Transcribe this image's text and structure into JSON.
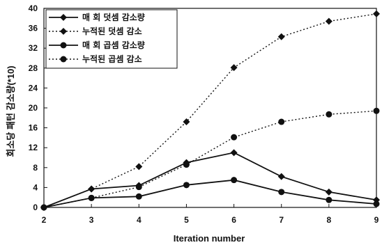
{
  "chart_data": {
    "type": "line",
    "title": "",
    "xlabel": "Iteration number",
    "ylabel": "회소당 패턴 감소량(*10)",
    "x": [
      2,
      3,
      4,
      5,
      6,
      7,
      8,
      9
    ],
    "xlim": [
      2,
      9
    ],
    "ylim": [
      0,
      40
    ],
    "yticks": [
      0,
      4,
      8,
      12,
      16,
      20,
      24,
      28,
      32,
      36,
      40
    ],
    "grid": false,
    "legend_position": "top-left",
    "series": [
      {
        "name": "매 회 덧셈 감소량",
        "marker": "diamond",
        "line": "solid",
        "values": [
          0,
          3.7,
          4.4,
          9.0,
          11.0,
          6.2,
          3.1,
          1.5
        ]
      },
      {
        "name": "누적된 덧셈 감소",
        "marker": "diamond",
        "line": "dotted",
        "values": [
          0,
          3.7,
          8.2,
          17.2,
          28.1,
          34.3,
          37.4,
          38.9
        ]
      },
      {
        "name": "매 회 곱셈 감소량",
        "marker": "circle",
        "line": "solid",
        "values": [
          0,
          1.9,
          2.2,
          4.5,
          5.5,
          3.1,
          1.5,
          0.7
        ]
      },
      {
        "name": "누적된 곱셈 감소",
        "marker": "circle",
        "line": "dotted",
        "values": [
          0,
          1.9,
          4.1,
          8.6,
          14.1,
          17.2,
          18.7,
          19.4
        ]
      }
    ],
    "colors": {
      "line": "#111111",
      "background": "#ffffff"
    }
  }
}
